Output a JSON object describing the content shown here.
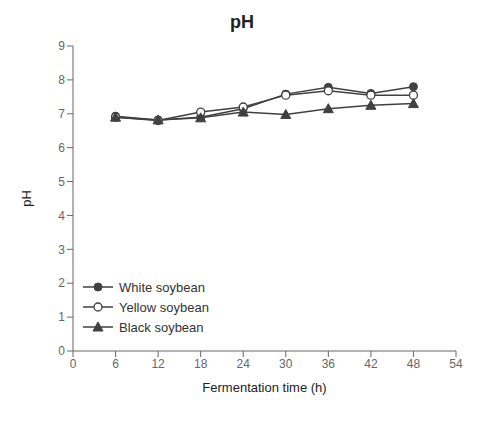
{
  "chart_data": {
    "type": "line",
    "title": "pH",
    "x_label": "Fermentation time (h)",
    "y_label": "pH",
    "x": [
      6,
      12,
      18,
      24,
      30,
      36,
      42,
      48
    ],
    "series": [
      {
        "name": "White soybean",
        "color": "#404040",
        "marker": "circle",
        "values": [
          6.93,
          6.82,
          6.9,
          7.15,
          7.58,
          7.78,
          7.6,
          7.8
        ]
      },
      {
        "name": "Yellow soybean",
        "color": "#404040",
        "marker": "circle_open",
        "values": [
          6.9,
          6.8,
          7.05,
          7.2,
          7.55,
          7.68,
          7.55,
          7.55
        ]
      },
      {
        "name": "Black soybean",
        "color": "#404040",
        "marker": "triangle",
        "values": [
          6.9,
          6.82,
          6.88,
          7.05,
          6.98,
          7.15,
          7.25,
          7.3
        ]
      }
    ],
    "xlim": [
      0,
      54
    ],
    "ylim": [
      0,
      9
    ],
    "xticks": [
      0,
      6,
      12,
      18,
      24,
      30,
      36,
      42,
      48,
      54
    ],
    "yticks": [
      0,
      1,
      2,
      3,
      4,
      5,
      6,
      7,
      8,
      9
    ],
    "grid": false,
    "legend": "lower left"
  }
}
